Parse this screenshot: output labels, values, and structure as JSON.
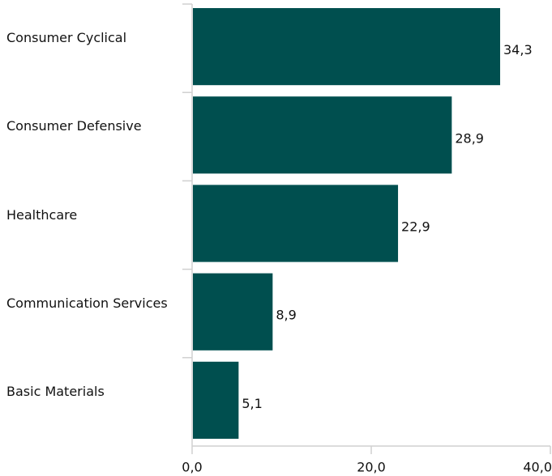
{
  "chart_data": {
    "type": "bar",
    "orientation": "horizontal",
    "categories": [
      "Consumer Cyclical",
      "Consumer Defensive",
      "Healthcare",
      "Communication Services",
      "Basic Materials"
    ],
    "values": [
      34.3,
      28.9,
      22.9,
      8.9,
      5.1
    ],
    "value_labels": [
      "34,3",
      "28,9",
      "22,9",
      "8,9",
      "5,1"
    ],
    "color": "#004f4f",
    "xlim": [
      0,
      40
    ],
    "xticks": [
      {
        "value": 0,
        "label": "0,0"
      },
      {
        "value": 20,
        "label": "20,0"
      },
      {
        "value": 40,
        "label": "40,0"
      }
    ],
    "grid": false
  }
}
